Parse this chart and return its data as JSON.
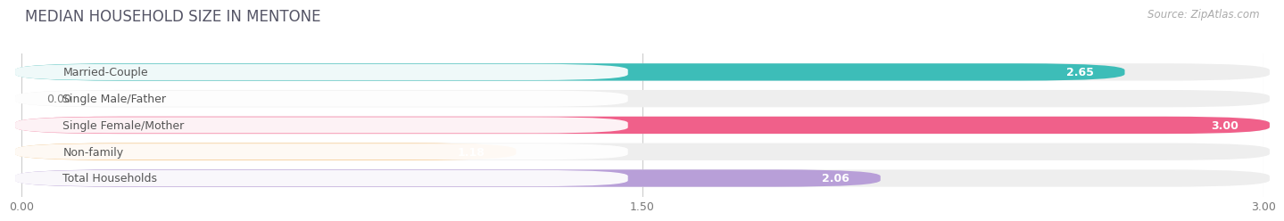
{
  "title": "MEDIAN HOUSEHOLD SIZE IN MENTONE",
  "source": "Source: ZipAtlas.com",
  "categories": [
    "Married-Couple",
    "Single Male/Father",
    "Single Female/Mother",
    "Non-family",
    "Total Households"
  ],
  "values": [
    2.65,
    0.0,
    3.0,
    1.18,
    2.06
  ],
  "bar_colors": [
    "#3dbdb8",
    "#9db8e8",
    "#f0608a",
    "#f5c07a",
    "#b89fd8"
  ],
  "xlim": [
    0,
    3.0
  ],
  "xticks": [
    0.0,
    1.5,
    3.0
  ],
  "xtick_labels": [
    "0.00",
    "1.50",
    "3.00"
  ],
  "title_fontsize": 12,
  "source_fontsize": 8.5,
  "label_fontsize": 9,
  "value_fontsize": 9,
  "background_color": "#ffffff",
  "bar_bg_color": "#eeeeee",
  "bar_height": 0.62,
  "label_box_color": "#ffffff",
  "label_text_color": "#555555",
  "value_text_color_inside": "#ffffff",
  "value_text_color_outside": "#777777"
}
